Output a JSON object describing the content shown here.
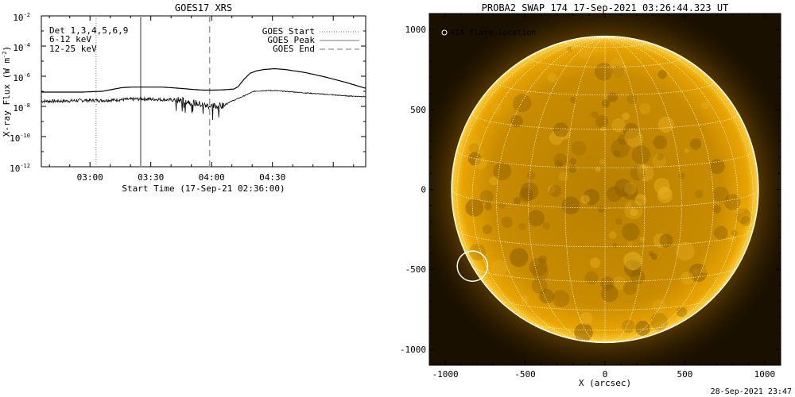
{
  "chart_data": [
    {
      "type": "line",
      "title": "GOES17 XRS",
      "xlabel": "Start Time (17-Sep-21 02:36:00)",
      "ylabel_main": "X-ray Flux (W m",
      "ylabel_exp": "-2",
      "ylabel_close": ")",
      "x_unit": "minutes since 02:36",
      "xlim": [
        0,
        160
      ],
      "ylim_log10": [
        -12,
        -2
      ],
      "y_scale": "log",
      "x_ticks": [
        {
          "v": 24,
          "label": "03:00"
        },
        {
          "v": 54,
          "label": "03:30"
        },
        {
          "v": 84,
          "label": "04:00"
        },
        {
          "v": 114,
          "label": "04:30"
        }
      ],
      "y_ticks": [
        {
          "exp": -2,
          "label": "-2"
        },
        {
          "exp": -4,
          "label": "-4"
        },
        {
          "exp": -6,
          "label": "-6"
        },
        {
          "exp": -8,
          "label": "-8"
        },
        {
          "exp": -10,
          "label": "-10"
        },
        {
          "exp": -12,
          "label": "-12"
        }
      ],
      "y_tick_base": "10",
      "energy_labels": [
        {
          "text": "Det 1,3,4,5,6,9",
          "color": "#000000"
        },
        {
          "text": "6-12 keV",
          "color": "#cc00cc"
        },
        {
          "text": "12-25 keV",
          "color": "#00cc00"
        }
      ],
      "legend": {
        "placement": "top-right",
        "entries": [
          {
            "label": "GOES Start",
            "style": "dotted"
          },
          {
            "label": "GOES Peak",
            "style": "solid"
          },
          {
            "label": "GOES End",
            "style": "dashed"
          }
        ]
      },
      "markers": {
        "start": 27,
        "peak": 49,
        "end": 83
      },
      "series": [
        {
          "x": [
            0,
            10,
            20,
            30,
            40,
            45,
            50,
            60,
            70,
            75,
            80,
            85,
            90,
            95,
            97,
            100,
            103,
            106,
            110,
            115,
            120,
            130,
            140,
            150,
            160
          ],
          "log10_y": [
            -7.05,
            -7.05,
            -7.05,
            -7.0,
            -6.75,
            -6.72,
            -6.72,
            -6.72,
            -6.82,
            -6.88,
            -6.92,
            -6.92,
            -6.9,
            -6.85,
            -6.7,
            -6.2,
            -5.8,
            -5.65,
            -5.55,
            -5.5,
            -5.55,
            -5.75,
            -6.05,
            -6.4,
            -6.8
          ],
          "color": "#000000",
          "width": 1.2
        },
        {
          "x": [
            0,
            10,
            20,
            30,
            40,
            50,
            60,
            70,
            75,
            80,
            85,
            90,
            93,
            95,
            100,
            105,
            110,
            115,
            120,
            130,
            140,
            150,
            160
          ],
          "log10_y": [
            -7.65,
            -7.65,
            -7.6,
            -7.6,
            -7.55,
            -7.5,
            -7.55,
            -7.6,
            -7.75,
            -7.9,
            -8.0,
            -7.9,
            -7.7,
            -7.6,
            -7.3,
            -7.0,
            -6.95,
            -6.95,
            -7.0,
            -7.1,
            -7.2,
            -7.3,
            -7.35
          ],
          "color": "#000000",
          "width": 1.6,
          "noise": true
        }
      ]
    },
    {
      "type": "image",
      "title": "PROBA2 SWAP 174 17-Sep-2021 03:26:44.323 UT",
      "xlabel": "X (arcsec)",
      "xlim": [
        -1100,
        1100
      ],
      "ylim": [
        -1100,
        1100
      ],
      "x_ticks": [
        {
          "v": -1000,
          "label": "-1000"
        },
        {
          "v": -500,
          "label": "-500"
        },
        {
          "v": 0,
          "label": "0"
        },
        {
          "v": 500,
          "label": "500"
        },
        {
          "v": 1000,
          "label": "1000"
        }
      ],
      "y_ticks": [
        {
          "v": 1000,
          "label": "1000"
        },
        {
          "v": 500,
          "label": "500"
        },
        {
          "v": 0,
          "label": "0"
        },
        {
          "v": -500,
          "label": "-500"
        },
        {
          "v": -1000,
          "label": "-1000"
        }
      ],
      "solar_radius_arcsec": 960,
      "flare_location": {
        "x": -830,
        "y": -480,
        "r_arcsec": 95
      },
      "flare_legend": "AIA flare location",
      "colors": {
        "disk": "#c88a00",
        "corona": "#ffb000",
        "grid": "#ffffff",
        "limb": "#fff4c0"
      }
    }
  ],
  "footer": {
    "timestamp": "28-Sep-2021 23:47"
  }
}
